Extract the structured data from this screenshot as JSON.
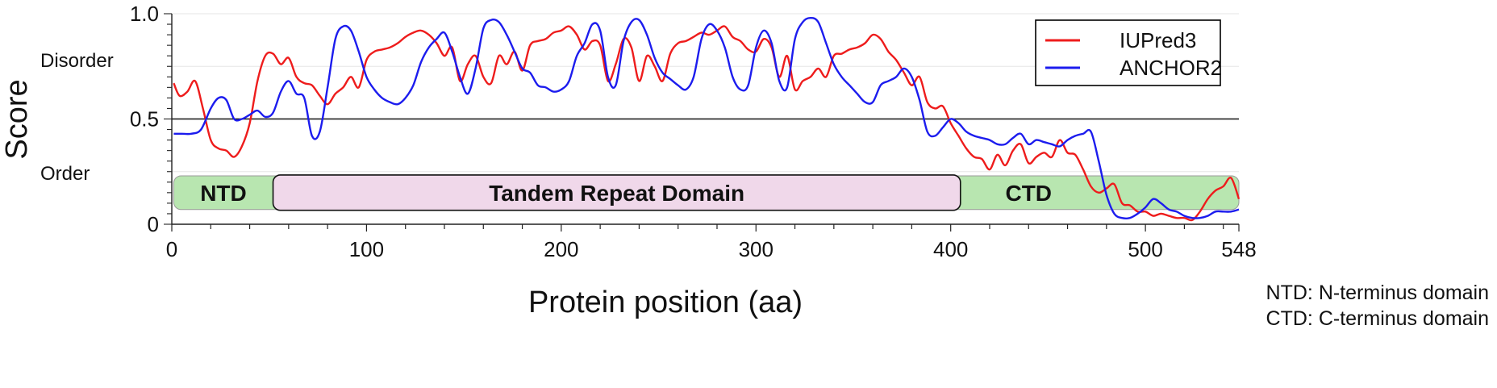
{
  "chart_data": {
    "type": "line",
    "title": "",
    "xlabel": "Protein position (aa)",
    "ylabel": "Score",
    "xlim": [
      0,
      548
    ],
    "ylim": [
      0,
      1.0
    ],
    "x_ticks": [
      0,
      100,
      200,
      300,
      400,
      500,
      548
    ],
    "y_ticks": [
      0,
      0.5,
      1.0
    ],
    "y_tick_labels": [
      "0",
      "0.5",
      "1.0"
    ],
    "grid": "horizontal",
    "threshold": 0.5,
    "annotations": {
      "upper": "Disorder",
      "lower": "Order"
    },
    "legend": {
      "position": "top-right",
      "entries": [
        "IUPred3",
        "ANCHOR2"
      ]
    },
    "colors": {
      "IUPred3": "#ee1c1c",
      "ANCHOR2": "#1c1cee",
      "domain_side": "#b8e6b0",
      "domain_middle": "#f0d8ea"
    },
    "domains": [
      {
        "label": "NTD",
        "start": 1,
        "end": 52
      },
      {
        "label": "Tandem Repeat Domain",
        "start": 52,
        "end": 405
      },
      {
        "label": "CTD",
        "start": 405,
        "end": 548
      }
    ],
    "domain_band": [
      0.07,
      0.23
    ],
    "footnotes": [
      "NTD: N-terminus domain",
      "CTD: C-terminus domain"
    ],
    "series": [
      {
        "name": "IUPred3",
        "x": [
          1,
          4,
          8,
          12,
          16,
          20,
          24,
          28,
          32,
          36,
          40,
          44,
          48,
          52,
          56,
          60,
          64,
          68,
          72,
          76,
          80,
          84,
          88,
          92,
          96,
          100,
          104,
          108,
          112,
          116,
          120,
          124,
          128,
          132,
          136,
          140,
          144,
          148,
          152,
          156,
          160,
          164,
          168,
          172,
          176,
          180,
          184,
          188,
          192,
          196,
          200,
          204,
          208,
          212,
          216,
          220,
          224,
          228,
          232,
          236,
          240,
          244,
          248,
          252,
          256,
          260,
          264,
          268,
          272,
          276,
          280,
          284,
          288,
          292,
          296,
          300,
          304,
          308,
          312,
          316,
          320,
          324,
          328,
          332,
          336,
          340,
          344,
          348,
          352,
          356,
          360,
          364,
          368,
          372,
          376,
          380,
          384,
          388,
          392,
          396,
          400,
          404,
          408,
          412,
          416,
          420,
          424,
          428,
          432,
          436,
          440,
          444,
          448,
          452,
          456,
          460,
          464,
          468,
          472,
          476,
          480,
          484,
          488,
          492,
          496,
          500,
          504,
          508,
          512,
          516,
          520,
          524,
          528,
          532,
          536,
          540,
          544,
          548
        ],
        "values": [
          0.67,
          0.61,
          0.63,
          0.68,
          0.55,
          0.4,
          0.36,
          0.35,
          0.32,
          0.37,
          0.48,
          0.68,
          0.8,
          0.81,
          0.76,
          0.79,
          0.7,
          0.67,
          0.66,
          0.61,
          0.57,
          0.62,
          0.65,
          0.7,
          0.65,
          0.78,
          0.82,
          0.83,
          0.84,
          0.86,
          0.89,
          0.91,
          0.92,
          0.9,
          0.86,
          0.8,
          0.84,
          0.68,
          0.76,
          0.8,
          0.7,
          0.67,
          0.8,
          0.76,
          0.82,
          0.73,
          0.85,
          0.87,
          0.88,
          0.91,
          0.92,
          0.94,
          0.9,
          0.83,
          0.87,
          0.85,
          0.68,
          0.76,
          0.88,
          0.84,
          0.68,
          0.8,
          0.75,
          0.68,
          0.81,
          0.86,
          0.87,
          0.89,
          0.91,
          0.9,
          0.92,
          0.94,
          0.89,
          0.87,
          0.83,
          0.82,
          0.88,
          0.84,
          0.7,
          0.8,
          0.64,
          0.68,
          0.7,
          0.74,
          0.7,
          0.8,
          0.81,
          0.83,
          0.84,
          0.86,
          0.9,
          0.88,
          0.82,
          0.78,
          0.72,
          0.66,
          0.7,
          0.58,
          0.55,
          0.56,
          0.48,
          0.42,
          0.36,
          0.32,
          0.31,
          0.26,
          0.33,
          0.28,
          0.35,
          0.38,
          0.29,
          0.32,
          0.34,
          0.32,
          0.4,
          0.34,
          0.33,
          0.26,
          0.18,
          0.15,
          0.17,
          0.19,
          0.1,
          0.09,
          0.06,
          0.06,
          0.04,
          0.05,
          0.04,
          0.03,
          0.03,
          0.02,
          0.06,
          0.12,
          0.16,
          0.18,
          0.22,
          0.12
        ]
      },
      {
        "name": "ANCHOR2",
        "x": [
          1,
          5,
          10,
          15,
          20,
          24,
          28,
          32,
          36,
          40,
          44,
          48,
          52,
          56,
          60,
          64,
          68,
          72,
          76,
          80,
          84,
          88,
          92,
          96,
          100,
          104,
          108,
          112,
          116,
          120,
          124,
          128,
          132,
          136,
          140,
          144,
          148,
          152,
          156,
          160,
          164,
          168,
          172,
          176,
          180,
          184,
          188,
          192,
          196,
          200,
          204,
          208,
          212,
          216,
          220,
          224,
          228,
          232,
          236,
          240,
          244,
          248,
          252,
          256,
          260,
          264,
          268,
          272,
          276,
          280,
          284,
          288,
          292,
          296,
          300,
          304,
          308,
          312,
          316,
          320,
          324,
          328,
          332,
          336,
          340,
          344,
          348,
          352,
          356,
          360,
          364,
          368,
          372,
          376,
          380,
          384,
          388,
          392,
          396,
          400,
          404,
          408,
          412,
          416,
          420,
          424,
          428,
          432,
          436,
          440,
          444,
          448,
          452,
          456,
          460,
          464,
          468,
          472,
          476,
          480,
          484,
          488,
          492,
          496,
          500,
          504,
          508,
          512,
          516,
          520,
          524,
          528,
          532,
          536,
          540,
          544,
          548
        ],
        "values": [
          0.43,
          0.43,
          0.43,
          0.45,
          0.55,
          0.6,
          0.59,
          0.5,
          0.5,
          0.52,
          0.54,
          0.51,
          0.53,
          0.63,
          0.68,
          0.62,
          0.6,
          0.42,
          0.44,
          0.65,
          0.88,
          0.94,
          0.92,
          0.82,
          0.7,
          0.64,
          0.6,
          0.58,
          0.57,
          0.6,
          0.66,
          0.77,
          0.84,
          0.88,
          0.91,
          0.82,
          0.7,
          0.62,
          0.74,
          0.93,
          0.97,
          0.96,
          0.9,
          0.82,
          0.74,
          0.72,
          0.66,
          0.65,
          0.63,
          0.64,
          0.68,
          0.8,
          0.86,
          0.95,
          0.92,
          0.7,
          0.66,
          0.87,
          0.96,
          0.97,
          0.9,
          0.79,
          0.72,
          0.69,
          0.66,
          0.64,
          0.7,
          0.88,
          0.95,
          0.92,
          0.84,
          0.7,
          0.64,
          0.66,
          0.84,
          0.92,
          0.86,
          0.68,
          0.65,
          0.88,
          0.96,
          0.98,
          0.96,
          0.86,
          0.76,
          0.7,
          0.66,
          0.62,
          0.58,
          0.58,
          0.66,
          0.68,
          0.7,
          0.74,
          0.7,
          0.59,
          0.44,
          0.42,
          0.46,
          0.5,
          0.48,
          0.44,
          0.42,
          0.41,
          0.4,
          0.38,
          0.38,
          0.41,
          0.43,
          0.38,
          0.4,
          0.39,
          0.38,
          0.37,
          0.4,
          0.42,
          0.43,
          0.44,
          0.3,
          0.14,
          0.05,
          0.03,
          0.03,
          0.05,
          0.08,
          0.12,
          0.1,
          0.07,
          0.06,
          0.04,
          0.03,
          0.03,
          0.04,
          0.06,
          0.06,
          0.06,
          0.07
        ]
      }
    ]
  }
}
